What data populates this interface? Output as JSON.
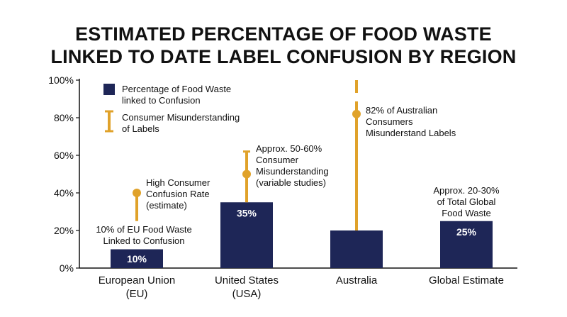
{
  "chart_data": {
    "type": "bar",
    "title_lines": [
      "ESTIMATED PERCENTAGE OF FOOD WASTE",
      "LINKED TO DATE LABEL CONFUSION BY REGION"
    ],
    "categories": [
      [
        "European Union",
        "(EU)"
      ],
      [
        "United States",
        "(USA)"
      ],
      [
        "Australia"
      ],
      [
        "Global Estimate"
      ]
    ],
    "series": [
      {
        "name": "Percentage of Food Waste linked to Confusion",
        "legend_lines": [
          "Percentage of Food Waste",
          "linked to Confusion"
        ],
        "values": [
          10,
          35,
          20,
          25
        ],
        "bar_labels": [
          "10%",
          "35%",
          "",
          "25%"
        ],
        "color": "#1e2657"
      },
      {
        "name": "Consumer Misunderstanding of Labels",
        "legend_lines": [
          "Consumer Misunderstanding",
          "of Labels"
        ],
        "color": "#e0a22a",
        "points": [
          {
            "value": 40,
            "low": 25,
            "high": 40
          },
          {
            "value": 50,
            "low": 35,
            "high": 62
          },
          {
            "value": 82,
            "low": 20,
            "high": 100
          },
          null
        ]
      }
    ],
    "annotations": [
      {
        "category": 0,
        "anchor": "bar",
        "lines": [
          "10% of EU Food Waste",
          "Linked to Confusion"
        ]
      },
      {
        "category": 0,
        "anchor": "point",
        "lines": [
          "High Consumer",
          "Confusion Rate",
          "(estimate)"
        ]
      },
      {
        "category": 1,
        "anchor": "point",
        "lines": [
          "Approx. 50-60%",
          "Consumer",
          "Misunderstanding",
          "(variable studies)"
        ]
      },
      {
        "category": 2,
        "anchor": "point",
        "lines": [
          "82% of Australian",
          "Consumers",
          "Misunderstand Labels"
        ]
      },
      {
        "category": 3,
        "anchor": "bar",
        "lines": [
          "Approx. 20-30%",
          "of Total Global",
          "Food Waste"
        ]
      }
    ],
    "y_ticks": [
      "0%",
      "20%",
      "40%",
      "60%",
      "80%",
      "100%"
    ],
    "ylim": [
      0,
      100
    ],
    "grid": false,
    "legend_position": "top-left"
  }
}
